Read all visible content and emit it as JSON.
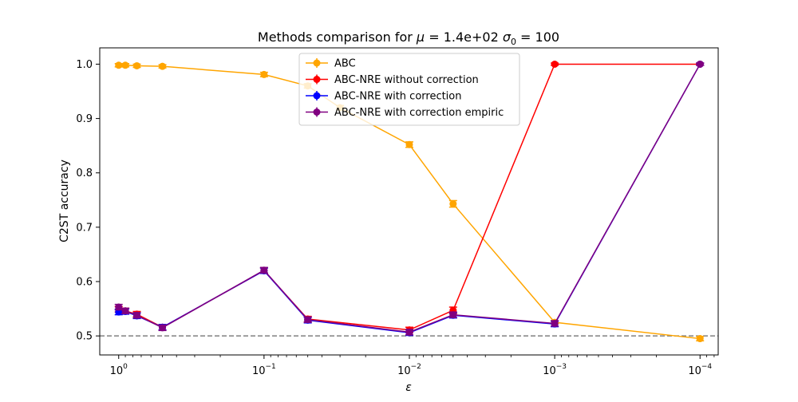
{
  "chart_data": {
    "type": "line",
    "title": "Methods comparison for μ = 1.4e+02 σ₀ = 100",
    "title_parts": {
      "prefix": "Methods comparison for ",
      "mu_symbol": "μ",
      "mu_text": " =  1.4e+02 ",
      "sigma_symbol": "σ",
      "sigma_sub": "0",
      "sigma_text": " =  100"
    },
    "xlabel": "ε",
    "ylabel": "C2ST accuracy",
    "x_scale": "log",
    "x_reversed": true,
    "xlim": [
      1.35,
      7.5e-05
    ],
    "ylim": [
      0.465,
      1.03
    ],
    "x_ticks": [
      {
        "value": 1,
        "base": "10",
        "exp": "0"
      },
      {
        "value": 0.1,
        "base": "10",
        "exp": "−1"
      },
      {
        "value": 0.01,
        "base": "10",
        "exp": "−2"
      },
      {
        "value": 0.001,
        "base": "10",
        "exp": "−3"
      },
      {
        "value": 0.0001,
        "base": "10",
        "exp": "−4"
      }
    ],
    "y_ticks": [
      "0.5",
      "0.6",
      "0.7",
      "0.8",
      "0.9",
      "1.0"
    ],
    "reference_line": {
      "y": 0.5,
      "color": "#808080",
      "style": "dashed"
    },
    "grid": false,
    "legend_position": "top-center",
    "series": [
      {
        "name": "ABC",
        "color": "#FFA500",
        "x": [
          1,
          0.9,
          0.75,
          0.5,
          0.1,
          0.05,
          0.03,
          0.01,
          0.005,
          0.001,
          0.0001
        ],
        "y": [
          0.998,
          0.998,
          0.997,
          0.996,
          0.981,
          0.96,
          0.92,
          0.852,
          0.743,
          0.525,
          0.495
        ],
        "err": [
          0.003,
          0.003,
          0.003,
          0.003,
          0.004,
          0.004,
          0.004,
          0.005,
          0.006,
          0.003,
          0.004
        ]
      },
      {
        "name": "ABC-NRE without correction",
        "color": "#FF0000",
        "x": [
          1,
          0.9,
          0.75,
          0.5,
          0.1,
          0.05,
          0.01,
          0.005,
          0.001,
          0.0001
        ],
        "y": [
          0.549,
          0.546,
          0.54,
          0.516,
          0.62,
          0.531,
          0.511,
          0.547,
          1.0,
          1.0
        ],
        "err": [
          0.005,
          0.005,
          0.005,
          0.005,
          0.005,
          0.005,
          0.005,
          0.006,
          0.002,
          0.002
        ]
      },
      {
        "name": "ABC-NRE with correction",
        "color": "#0000FF",
        "x": [
          1,
          0.9,
          0.75,
          0.5,
          0.1,
          0.05,
          0.01,
          0.005,
          0.001,
          0.0001
        ],
        "y": [
          0.544,
          0.545,
          0.537,
          0.516,
          0.62,
          0.529,
          0.506,
          0.538,
          0.522,
          1.0
        ],
        "err": [
          0.005,
          0.005,
          0.005,
          0.005,
          0.005,
          0.005,
          0.005,
          0.005,
          0.005,
          0.002
        ]
      },
      {
        "name": "ABC-NRE with correction empiric",
        "color": "#800080",
        "x": [
          1,
          0.9,
          0.75,
          0.5,
          0.1,
          0.05,
          0.01,
          0.005,
          0.001,
          0.0001
        ],
        "y": [
          0.553,
          0.546,
          0.538,
          0.515,
          0.621,
          0.53,
          0.507,
          0.539,
          0.523,
          1.0
        ],
        "err": [
          0.005,
          0.005,
          0.005,
          0.005,
          0.005,
          0.005,
          0.005,
          0.005,
          0.005,
          0.002
        ]
      }
    ]
  }
}
